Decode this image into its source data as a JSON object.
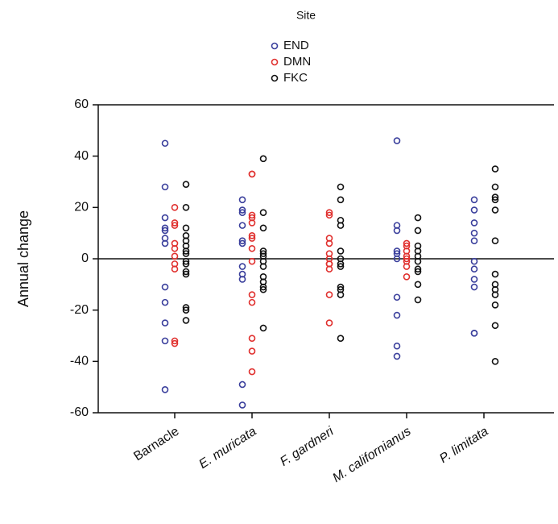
{
  "chart_data": {
    "type": "strip",
    "y_label": "Annual change",
    "legend_title": "Site",
    "legend": "top",
    "categories": [
      "Barnacle",
      "E. muricata",
      "F. gardneri",
      "M. californianus",
      "P. limitata"
    ],
    "category_italic": [
      false,
      true,
      true,
      true,
      true
    ],
    "ylim": [
      -60,
      60
    ],
    "yticks": [
      -60,
      -40,
      -20,
      0,
      20,
      40,
      60
    ],
    "series": [
      {
        "name": "END",
        "color": "#3a3f9c",
        "values": [
          [
            45,
            28,
            16,
            12,
            11,
            8,
            6,
            -11,
            -17,
            -25,
            -32,
            -51
          ],
          [
            23,
            19,
            18,
            13,
            7,
            6,
            -3,
            -6,
            -8,
            -49,
            -57
          ],
          [],
          [
            46,
            13,
            11,
            3,
            2,
            0,
            -15,
            -22,
            -34,
            -38
          ],
          [
            23,
            19,
            14,
            10,
            7,
            -1,
            -4,
            -8,
            -11,
            -29,
            -29
          ]
        ]
      },
      {
        "name": "DMN",
        "color": "#e0302e",
        "values": [
          [
            20,
            14,
            13,
            6,
            4,
            1,
            -2,
            -4,
            -32,
            -33
          ],
          [
            33,
            33,
            17,
            16,
            14,
            9,
            8,
            4,
            -1,
            -14,
            -17,
            -31,
            -36,
            -44
          ],
          [
            18,
            17,
            8,
            6,
            2,
            0,
            -2,
            -2,
            -4,
            -14,
            -25
          ],
          [
            6,
            5,
            3,
            1,
            0,
            -1,
            -3,
            -7
          ],
          []
        ]
      },
      {
        "name": "FKC",
        "color": "#111111",
        "values": [
          [
            29,
            20,
            12,
            9,
            7,
            5,
            3,
            2,
            -1,
            -2,
            -5,
            -6,
            -19,
            -20,
            -24
          ],
          [
            39,
            18,
            12,
            3,
            2,
            1,
            -1,
            -3,
            -7,
            -9,
            -11,
            -12,
            -27
          ],
          [
            28,
            23,
            15,
            13,
            3,
            0,
            -2,
            -3,
            -11,
            -12,
            -14,
            -31
          ],
          [
            16,
            11,
            5,
            3,
            1,
            -1,
            -4,
            -5,
            -10,
            -16
          ],
          [
            35,
            28,
            24,
            23,
            19,
            7,
            -6,
            -10,
            -12,
            -14,
            -18,
            -26,
            -40
          ]
        ]
      }
    ]
  }
}
